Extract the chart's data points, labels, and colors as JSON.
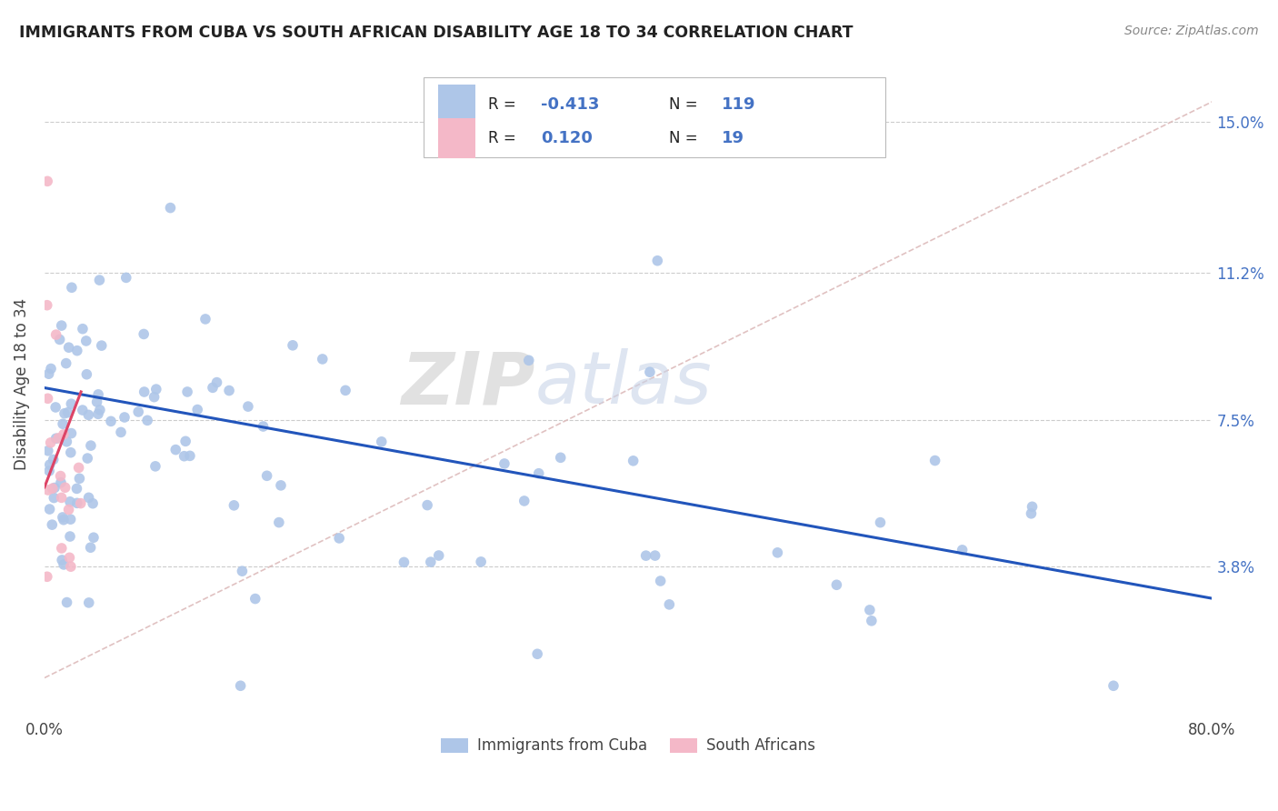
{
  "title": "IMMIGRANTS FROM CUBA VS SOUTH AFRICAN DISABILITY AGE 18 TO 34 CORRELATION CHART",
  "source": "Source: ZipAtlas.com",
  "ylabel": "Disability Age 18 to 34",
  "y_ticks": [
    0.038,
    0.075,
    0.112,
    0.15
  ],
  "y_tick_labels": [
    "3.8%",
    "7.5%",
    "11.2%",
    "15.0%"
  ],
  "x_min": 0.0,
  "x_max": 0.8,
  "y_min": 0.0,
  "y_max": 0.168,
  "blue_r": "-0.413",
  "blue_n": "119",
  "pink_r": "0.120",
  "pink_n": "19",
  "blue_color": "#aec6e8",
  "pink_color": "#f4b8c8",
  "blue_line_color": "#2255bb",
  "pink_line_color": "#dd4466",
  "gray_line_color": "#ddbbbb",
  "watermark_zip": "ZIP",
  "watermark_atlas": "atlas",
  "legend_label_blue": "Immigrants from Cuba",
  "legend_label_pink": "South Africans",
  "blue_trend_x": [
    0.0,
    0.8
  ],
  "blue_trend_y": [
    0.083,
    0.03
  ],
  "pink_trend_x": [
    0.0,
    0.025
  ],
  "pink_trend_y": [
    0.058,
    0.082
  ],
  "gray_trend_x": [
    0.0,
    0.8
  ],
  "gray_trend_y": [
    0.01,
    0.155
  ]
}
